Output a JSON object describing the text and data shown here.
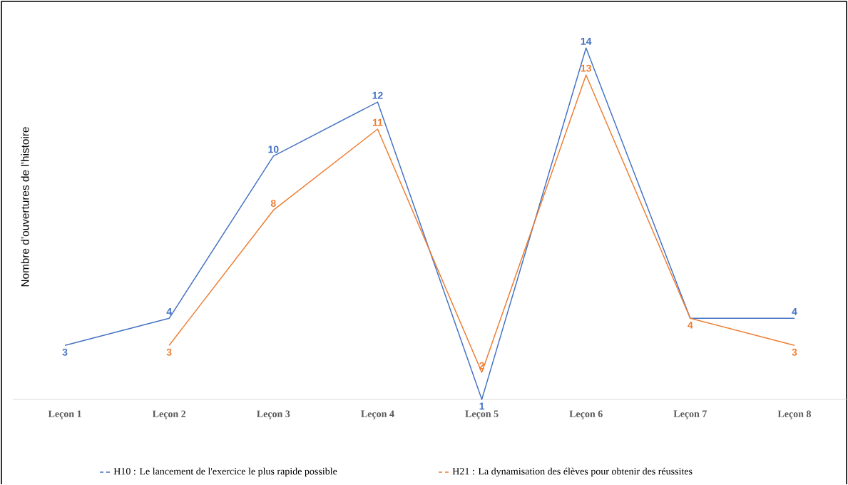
{
  "chart_data": {
    "type": "line",
    "ylabel": "Nombre d’ouvertures de l’histoire",
    "categories": [
      "Leçon 1",
      "Leçon 2",
      "Leçon 3",
      "Leçon 4",
      "Leçon 5",
      "Leçon 6",
      "Leçon 7",
      "Leçon 8"
    ],
    "series": [
      {
        "name": "H10 : Le lancement de l'exercice le plus rapide possible",
        "color": "#4472c4",
        "values": [
          3,
          4,
          10,
          12,
          1,
          14,
          4,
          4
        ],
        "value_labels": [
          "3",
          "4",
          "10",
          "12",
          "1",
          "14",
          null,
          "4"
        ]
      },
      {
        "name": "H21 : La dynamisation des élèves pour obtenir des réussites",
        "color": "#ed7d31",
        "values": [
          null,
          3,
          8,
          11,
          2,
          13,
          4,
          3
        ],
        "value_labels": [
          null,
          "3",
          "8",
          "11",
          "2",
          "13",
          "4",
          "3"
        ]
      }
    ],
    "tick_labels": "x",
    "legend": "bottom",
    "marker": "none",
    "line_style": "solid"
  }
}
